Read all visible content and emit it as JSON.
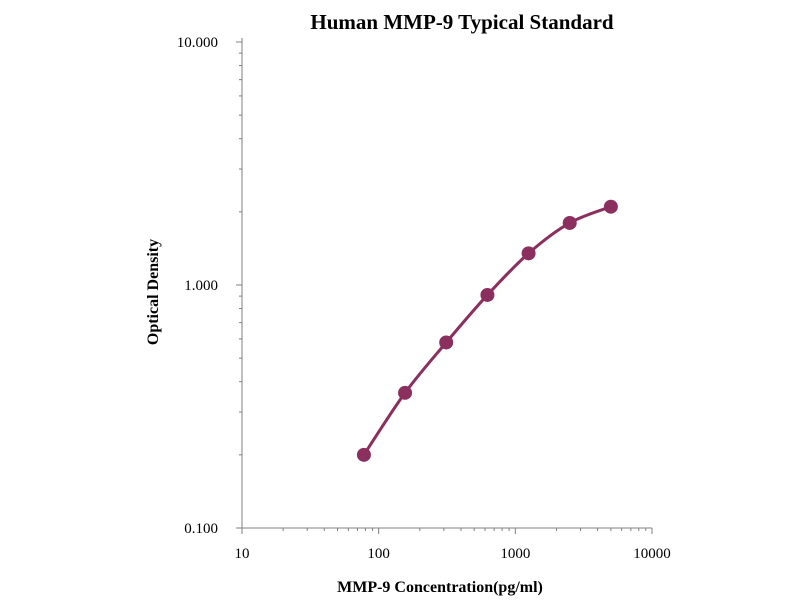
{
  "chart_data": {
    "type": "line",
    "title": "Human  MMP-9 Typical Standard",
    "xlabel": "MMP-9  Concentration(pg/ml)",
    "ylabel": "Optical  Density",
    "x_scale": "log",
    "y_scale": "log",
    "xlim": [
      10,
      10000
    ],
    "ylim": [
      0.1,
      10
    ],
    "x_tick_labels": [
      "10",
      "100",
      "1000",
      "10000"
    ],
    "y_tick_labels": [
      "0.100",
      "1.000",
      "10.000"
    ],
    "grid": false,
    "legend": "none",
    "series": [
      {
        "x": [
          78,
          156,
          312,
          625,
          1250,
          2500,
          5000
        ],
        "y": [
          0.2,
          0.36,
          0.58,
          0.91,
          1.35,
          1.8,
          2.1
        ]
      }
    ],
    "colors": {
      "series_line": "#8b2f5e",
      "axis": "#808080",
      "text": "#000000"
    }
  }
}
